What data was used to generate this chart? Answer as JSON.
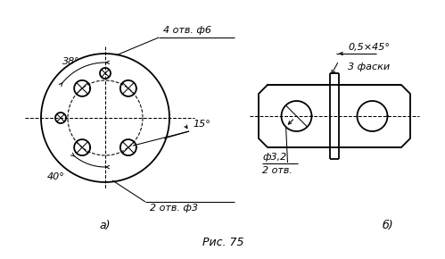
{
  "title": "Рис. 75",
  "bg_color": "#ffffff",
  "label_a": "а)",
  "label_b": "б)",
  "text_4otv_phi6": "4 отв. ф6",
  "text_2otv_phi3": "2 отв. ф3",
  "text_38deg": "38°",
  "text_40deg": "40°",
  "text_15deg": "15°",
  "text_chamfer": "0,5×45°",
  "text_3faski": "3 фаски",
  "text_phi32": "ф3,2",
  "text_2otv_b": "2 отв."
}
